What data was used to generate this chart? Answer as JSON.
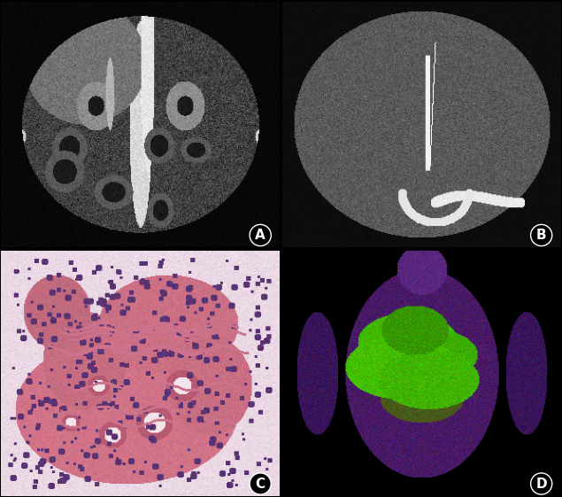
{
  "figure_width": 6.35,
  "figure_height": 5.61,
  "dpi": 100,
  "background_color": "#000000",
  "label_color": "#ffffff",
  "label_fontsize": 11,
  "panel_positions": {
    "A": [
      0.002,
      0.502,
      0.496,
      0.494
    ],
    "B": [
      0.502,
      0.502,
      0.496,
      0.494
    ],
    "C": [
      0.002,
      0.002,
      0.496,
      0.494
    ],
    "D": [
      0.502,
      0.002,
      0.496,
      0.494
    ]
  },
  "labels": [
    "A",
    "B",
    "C",
    "D"
  ]
}
